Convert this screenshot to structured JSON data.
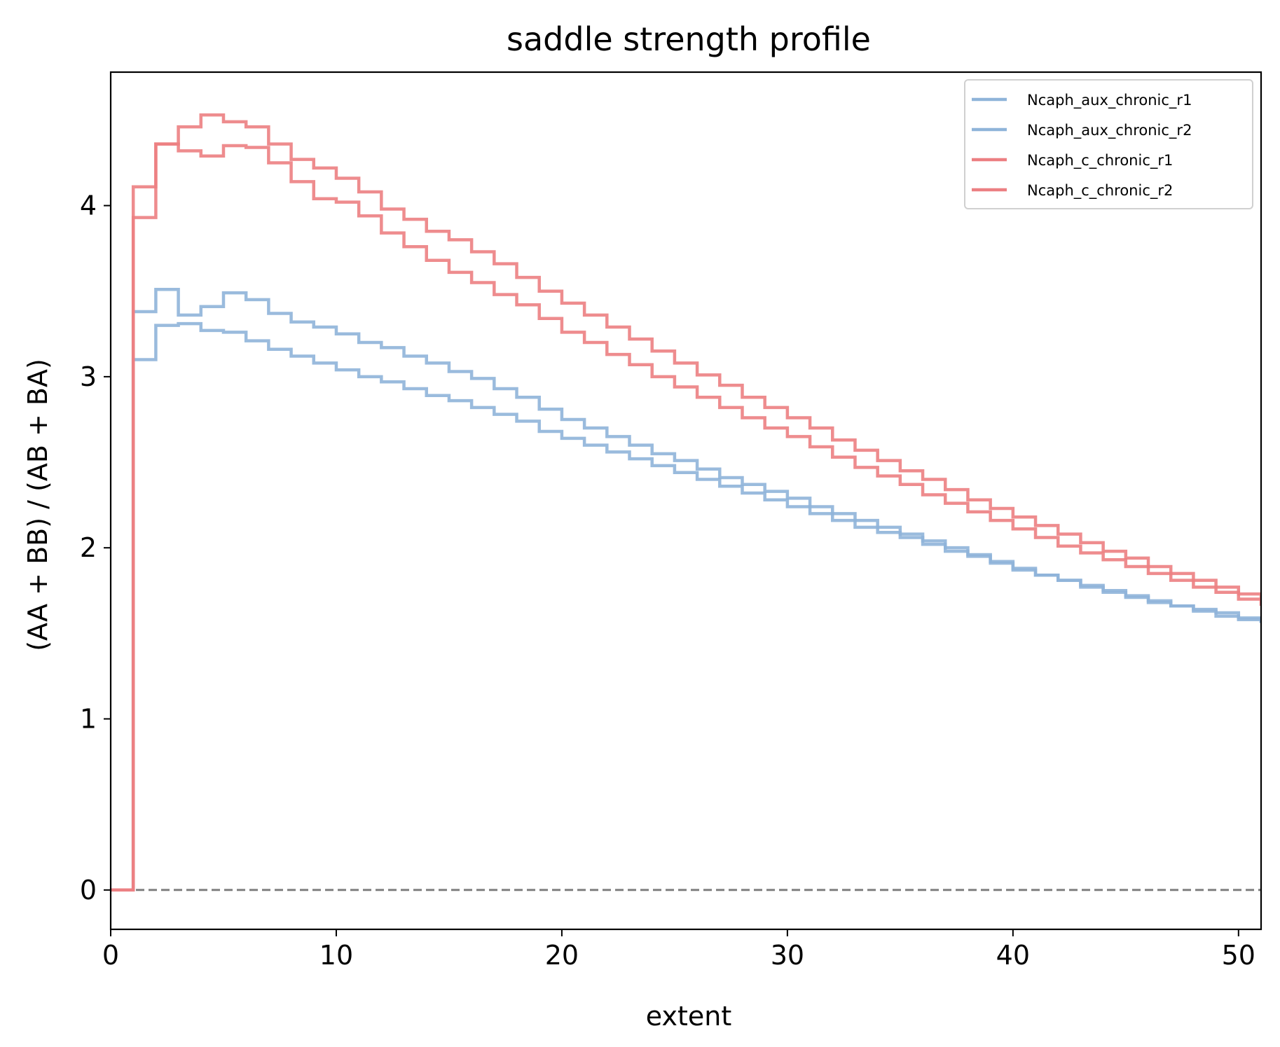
{
  "chart_data": {
    "type": "line",
    "title": "saddle strength profile",
    "xlabel": "extent",
    "ylabel": "(AA + BB) / (AB + BA)",
    "xlim": [
      0,
      51
    ],
    "ylim": [
      -0.23,
      4.78
    ],
    "xticks": [
      "0",
      "10",
      "20",
      "30",
      "40",
      "50"
    ],
    "yticks": [
      "0",
      "1",
      "2",
      "3",
      "4"
    ],
    "grid": false,
    "legend_position": "top-right",
    "reference_line": {
      "y": 0,
      "style": "dashed",
      "color": "#808080"
    },
    "series": [
      {
        "name": "Ncaph_aux_chronic_r1",
        "color": "#8fb4d9",
        "drawstyle": "steps",
        "values": [
          0,
          3.38,
          3.51,
          3.36,
          3.41,
          3.49,
          3.45,
          3.37,
          3.32,
          3.29,
          3.25,
          3.2,
          3.17,
          3.12,
          3.08,
          3.03,
          2.99,
          2.93,
          2.88,
          2.81,
          2.75,
          2.7,
          2.65,
          2.6,
          2.55,
          2.51,
          2.46,
          2.41,
          2.37,
          2.33,
          2.29,
          2.24,
          2.2,
          2.16,
          2.12,
          2.08,
          2.04,
          2.0,
          1.96,
          1.92,
          1.88,
          1.84,
          1.81,
          1.77,
          1.74,
          1.71,
          1.68,
          1.66,
          1.63,
          1.6,
          1.58,
          1.57
        ]
      },
      {
        "name": "Ncaph_aux_chronic_r2",
        "color": "#8fb4d9",
        "drawstyle": "steps",
        "values": [
          0,
          3.1,
          3.3,
          3.31,
          3.27,
          3.26,
          3.21,
          3.16,
          3.12,
          3.08,
          3.04,
          3.0,
          2.97,
          2.93,
          2.89,
          2.86,
          2.82,
          2.78,
          2.74,
          2.68,
          2.64,
          2.6,
          2.56,
          2.52,
          2.48,
          2.44,
          2.4,
          2.36,
          2.32,
          2.28,
          2.24,
          2.2,
          2.16,
          2.12,
          2.09,
          2.06,
          2.02,
          1.98,
          1.95,
          1.91,
          1.87,
          1.84,
          1.81,
          1.78,
          1.75,
          1.72,
          1.69,
          1.66,
          1.64,
          1.62,
          1.59,
          1.57
        ]
      },
      {
        "name": "Ncaph_c_chronic_r1",
        "color": "#ec7f82",
        "drawstyle": "steps",
        "values": [
          0,
          3.93,
          4.36,
          4.32,
          4.29,
          4.35,
          4.34,
          4.25,
          4.14,
          4.04,
          4.02,
          3.94,
          3.84,
          3.76,
          3.68,
          3.61,
          3.55,
          3.48,
          3.42,
          3.34,
          3.26,
          3.2,
          3.13,
          3.07,
          3.0,
          2.94,
          2.88,
          2.82,
          2.76,
          2.7,
          2.65,
          2.59,
          2.53,
          2.47,
          2.42,
          2.37,
          2.31,
          2.26,
          2.21,
          2.16,
          2.11,
          2.06,
          2.01,
          1.97,
          1.93,
          1.89,
          1.85,
          1.81,
          1.77,
          1.74,
          1.7,
          1.67
        ]
      },
      {
        "name": "Ncaph_c_chronic_r2",
        "color": "#ec7f82",
        "drawstyle": "steps",
        "values": [
          0,
          4.11,
          4.36,
          4.46,
          4.53,
          4.49,
          4.46,
          4.36,
          4.27,
          4.22,
          4.16,
          4.08,
          3.98,
          3.92,
          3.85,
          3.8,
          3.73,
          3.66,
          3.58,
          3.5,
          3.43,
          3.36,
          3.29,
          3.22,
          3.15,
          3.08,
          3.01,
          2.95,
          2.88,
          2.82,
          2.76,
          2.7,
          2.63,
          2.57,
          2.51,
          2.45,
          2.4,
          2.34,
          2.28,
          2.23,
          2.18,
          2.13,
          2.08,
          2.03,
          1.98,
          1.94,
          1.89,
          1.85,
          1.81,
          1.77,
          1.73,
          1.7
        ]
      }
    ]
  }
}
